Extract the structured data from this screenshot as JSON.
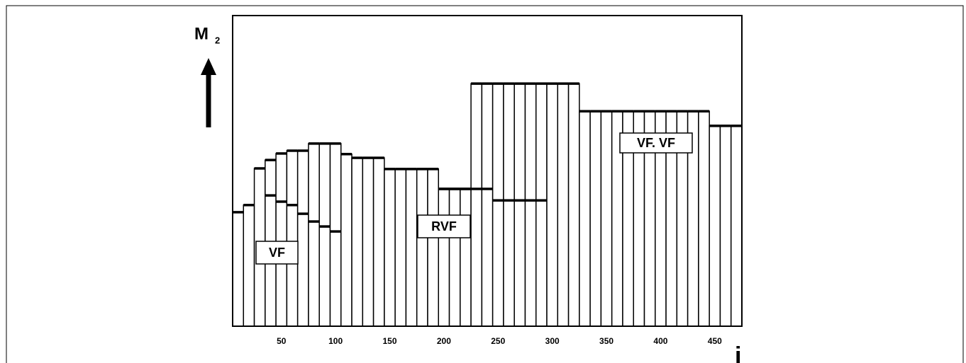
{
  "chart_data": {
    "type": "step-bar",
    "y_label": "M",
    "y_label_sub": "2",
    "x_label": "i",
    "x": [
      10,
      20,
      30,
      40,
      50,
      60,
      70,
      80,
      90,
      100,
      110,
      120,
      130,
      140,
      150,
      160,
      170,
      180,
      190,
      200,
      210,
      220,
      230,
      240,
      250,
      260,
      270,
      280,
      290,
      300,
      310,
      320,
      330,
      340,
      350,
      360,
      370,
      380,
      390,
      400,
      410,
      420,
      430,
      440,
      450,
      460,
      470
    ],
    "xlim": [
      5,
      475
    ],
    "xticks": [
      50,
      100,
      150,
      200,
      250,
      300,
      350,
      400,
      450
    ],
    "ylim": [
      0,
      100
    ],
    "bar_width": 10,
    "series": [
      {
        "name": "VF. VF",
        "color": "#000000",
        "values": [
          36.7,
          39,
          50.8,
          53.5,
          55.6,
          56.5,
          56.5,
          58.8,
          58.8,
          58.8,
          55.4,
          54.2,
          54.2,
          54.2,
          50.6,
          50.6,
          50.6,
          50.6,
          50.6,
          44.2,
          44.2,
          44.2,
          78.1,
          78.1,
          78.1,
          78.1,
          78.1,
          78.1,
          78.1,
          78.1,
          78.1,
          78.1,
          69.2,
          69.2,
          69.2,
          69.2,
          69.2,
          69.2,
          69.2,
          69.2,
          69.2,
          69.2,
          69.2,
          69.2,
          64.5,
          64.5,
          64.5
        ]
      },
      {
        "name": "RVF",
        "color": "#000000",
        "values": [
          null,
          null,
          null,
          null,
          null,
          null,
          null,
          null,
          null,
          null,
          null,
          null,
          null,
          null,
          null,
          null,
          null,
          null,
          null,
          44.2,
          44.2,
          44.2,
          44.2,
          44.2,
          40.5,
          40.5,
          40.5,
          40.5,
          40.5,
          null,
          null,
          null,
          null,
          null,
          null,
          null,
          null,
          null,
          null,
          null,
          null,
          null,
          null,
          null,
          null,
          null,
          null
        ]
      },
      {
        "name": "VF",
        "color": "#000000",
        "values": [
          null,
          null,
          null,
          42.1,
          40.1,
          39.0,
          36.2,
          33.7,
          32.1,
          30.5,
          null,
          null,
          null,
          null,
          null,
          null,
          null,
          null,
          null,
          null,
          null,
          null,
          null,
          null,
          null,
          null,
          null,
          null,
          null,
          null,
          null,
          null,
          null,
          null,
          null,
          null,
          null,
          null,
          null,
          null,
          null,
          null,
          null,
          null,
          null,
          null,
          null
        ]
      }
    ]
  }
}
